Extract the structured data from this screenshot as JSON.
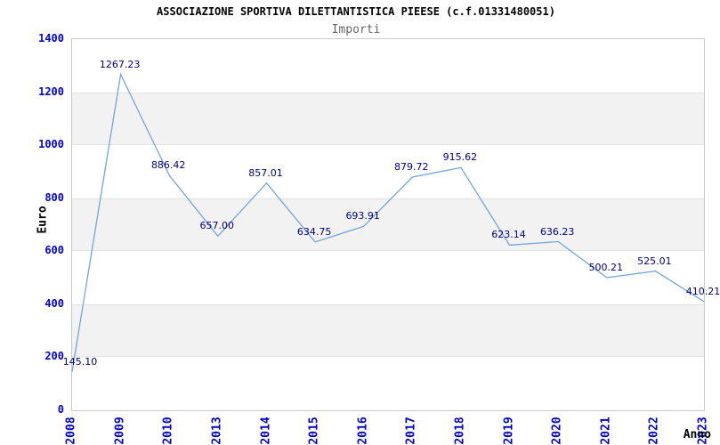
{
  "header": {
    "title": "ASSOCIAZIONE SPORTIVA DILETTANTISTICA PIEESE (c.f.01331480051)",
    "subtitle": "Importi"
  },
  "chart_data": {
    "type": "line",
    "title": "ASSOCIAZIONE SPORTIVA DILETTANTISTICA PIEESE (c.f.01331480051)",
    "subtitle": "Importi",
    "xlabel": "Anno",
    "ylabel": "Euro",
    "categories": [
      "2008",
      "2009",
      "2010",
      "2013",
      "2014",
      "2015",
      "2016",
      "2017",
      "2018",
      "2019",
      "2020",
      "2021",
      "2022",
      "2023"
    ],
    "values": [
      145.1,
      1267.23,
      886.42,
      657.0,
      857.01,
      634.75,
      693.91,
      879.72,
      915.62,
      623.14,
      636.23,
      500.21,
      525.01,
      410.21
    ],
    "point_labels": [
      "145.10",
      "1267.23",
      "886.42",
      "657.00",
      "857.01",
      "634.75",
      "693.91",
      "879.72",
      "915.62",
      "623.14",
      "636.23",
      "500.21",
      "525.01",
      "410.21"
    ],
    "ylim": [
      0,
      1400
    ],
    "yticks": [
      0,
      200,
      400,
      600,
      800,
      1000,
      1200,
      1400
    ],
    "shaded_bands": [
      [
        200,
        400
      ],
      [
        600,
        800
      ],
      [
        1000,
        1200
      ]
    ],
    "legend": "none",
    "grid": "banded",
    "colors": {
      "line": "#74a3df",
      "tick_labels": "#0000cc",
      "point_labels": "#000080",
      "band_fill": "#f2f2f2",
      "band_border": "#e2e2e2",
      "plot_border": "#c8c8c8",
      "title": "#000000",
      "subtitle": "#666666"
    }
  }
}
